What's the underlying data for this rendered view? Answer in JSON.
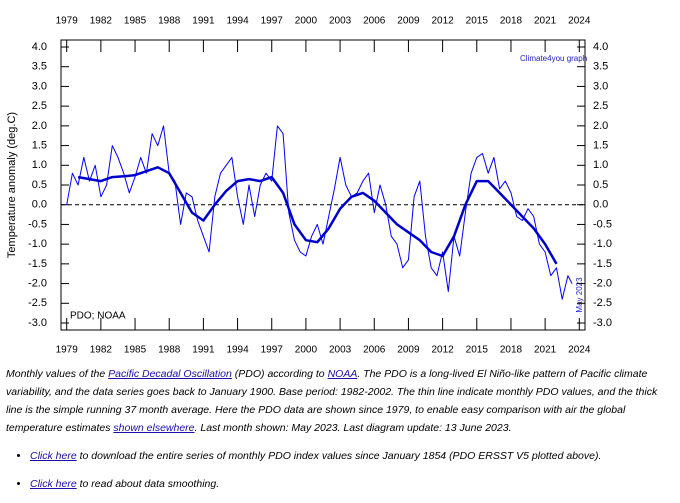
{
  "chart_data": {
    "type": "line",
    "y_label": "Temperature anomaly (deg.C)",
    "annotations": [
      "PDO; NOAA",
      "Climate4you graph",
      "May 2023"
    ],
    "xlim": [
      1978.5,
      2024.5
    ],
    "xticks": [
      1979,
      1982,
      1985,
      1988,
      1991,
      1994,
      1997,
      2000,
      2003,
      2006,
      2009,
      2012,
      2015,
      2018,
      2021,
      2024
    ],
    "ylim": [
      -3,
      4
    ],
    "yticks": [
      {
        "value": -3,
        "label": "-3.0"
      },
      {
        "value": -2.5,
        "label": "-2.5"
      },
      {
        "value": -2,
        "label": "-2.0"
      },
      {
        "value": -1.5,
        "label": "-1.5"
      },
      {
        "value": -1,
        "label": "-1.0"
      },
      {
        "value": -0.5,
        "label": "-0.5"
      },
      {
        "value": 0,
        "label": "0.0"
      },
      {
        "value": 0.5,
        "label": "0.5"
      },
      {
        "value": 1,
        "label": "1.0"
      },
      {
        "value": 1.5,
        "label": "1.5"
      },
      {
        "value": 2,
        "label": "2.0"
      },
      {
        "value": 2.5,
        "label": "2.5"
      },
      {
        "value": 3,
        "label": "3.0"
      },
      {
        "value": 3.5,
        "label": "3.5"
      },
      {
        "value": 4,
        "label": "4.0"
      }
    ],
    "zero_line": true,
    "series": [
      {
        "color": "#0000ff",
        "width": 1,
        "x": [
          1979.0,
          1979.5,
          1980.0,
          1980.5,
          1981.0,
          1981.5,
          1982.0,
          1982.5,
          1983.0,
          1983.5,
          1984.0,
          1984.5,
          1985.0,
          1985.5,
          1986.0,
          1986.5,
          1987.0,
          1987.5,
          1988.0,
          1988.5,
          1989.0,
          1989.5,
          1990.0,
          1990.5,
          1991.0,
          1991.5,
          1992.0,
          1992.5,
          1993.0,
          1993.5,
          1994.0,
          1994.5,
          1995.0,
          1995.5,
          1996.0,
          1996.5,
          1997.0,
          1997.5,
          1998.0,
          1998.5,
          1999.0,
          1999.5,
          2000.0,
          2000.5,
          2001.0,
          2001.5,
          2002.0,
          2002.5,
          2003.0,
          2003.5,
          2004.0,
          2004.5,
          2005.0,
          2005.5,
          2006.0,
          2006.5,
          2007.0,
          2007.5,
          2008.0,
          2008.5,
          2009.0,
          2009.5,
          2010.0,
          2010.5,
          2011.0,
          2011.5,
          2012.0,
          2012.5,
          2013.0,
          2013.5,
          2014.0,
          2014.5,
          2015.0,
          2015.5,
          2016.0,
          2016.5,
          2017.0,
          2017.5,
          2018.0,
          2018.5,
          2019.0,
          2019.5,
          2020.0,
          2020.5,
          2021.0,
          2021.5,
          2022.0,
          2022.5,
          2023.0,
          2023.37
        ],
        "values": [
          0.0,
          0.8,
          0.5,
          1.2,
          0.6,
          1.0,
          0.2,
          0.5,
          1.5,
          1.2,
          0.8,
          0.3,
          0.7,
          1.2,
          0.8,
          1.8,
          1.5,
          2.0,
          0.8,
          0.6,
          -0.5,
          0.3,
          0.2,
          -0.4,
          -0.8,
          -1.2,
          0.2,
          0.8,
          1.0,
          1.2,
          0.2,
          -0.5,
          0.5,
          -0.3,
          0.5,
          0.8,
          0.6,
          2.0,
          1.8,
          -0.2,
          -0.9,
          -1.2,
          -1.3,
          -0.8,
          -0.5,
          -1.0,
          -0.3,
          0.4,
          1.2,
          0.5,
          0.2,
          0.3,
          0.6,
          0.8,
          -0.2,
          0.5,
          0.0,
          -0.8,
          -1.0,
          -1.6,
          -1.4,
          0.2,
          0.6,
          -0.8,
          -1.6,
          -1.8,
          -1.2,
          -2.2,
          -0.8,
          -1.3,
          -0.2,
          0.8,
          1.2,
          1.3,
          0.8,
          1.2,
          0.4,
          0.6,
          0.3,
          -0.3,
          -0.4,
          -0.1,
          -0.3,
          -1.0,
          -1.2,
          -1.8,
          -1.6,
          -2.4,
          -1.8,
          -2.0
        ]
      },
      {
        "color": "#0000cc",
        "width": 2.5,
        "x": [
          1980,
          1981,
          1982,
          1983,
          1984,
          1985,
          1986,
          1987,
          1988,
          1989,
          1990,
          1991,
          1992,
          1993,
          1994,
          1995,
          1996,
          1997,
          1998,
          1999,
          2000,
          2001,
          2002,
          2003,
          2004,
          2005,
          2006,
          2007,
          2008,
          2009,
          2010,
          2011,
          2012,
          2013,
          2014,
          2015,
          2016,
          2017,
          2018,
          2019,
          2020,
          2021,
          2022
        ],
        "values": [
          0.7,
          0.65,
          0.6,
          0.7,
          0.72,
          0.75,
          0.85,
          0.95,
          0.8,
          0.3,
          -0.2,
          -0.4,
          0.0,
          0.35,
          0.6,
          0.65,
          0.6,
          0.7,
          0.3,
          -0.5,
          -0.9,
          -0.95,
          -0.6,
          -0.1,
          0.2,
          0.3,
          0.1,
          -0.2,
          -0.5,
          -0.7,
          -0.9,
          -1.2,
          -1.3,
          -0.8,
          0.0,
          0.6,
          0.6,
          0.3,
          0.0,
          -0.3,
          -0.6,
          -1.0,
          -1.5
        ]
      }
    ]
  },
  "caption": [
    "Monthly values of the ",
    "Pacific Decadal Oscillation",
    " (PDO) according to ",
    "NOAA",
    ". The PDO is a long-lived El Niño-like pattern of Pacific climate variability, and the data series goes back to January 1900. Base period: 1982-2002. The thin line indicate monthly PDO values, and the thick line is the simple running 37 month average. Here the PDO data are shown since 1979, to enable easy comparison with air the global temperature estimates ",
    "shown elsewhere",
    ". Last month shown: May 2023. Last diagram update: 13 June 2023."
  ],
  "bullets": [
    [
      "Click here",
      " to download the entire series of monthly PDO index values since January 1854 (PDO ERSST V5 plotted above)."
    ],
    [
      "Click here",
      " to read about data smoothing."
    ]
  ]
}
